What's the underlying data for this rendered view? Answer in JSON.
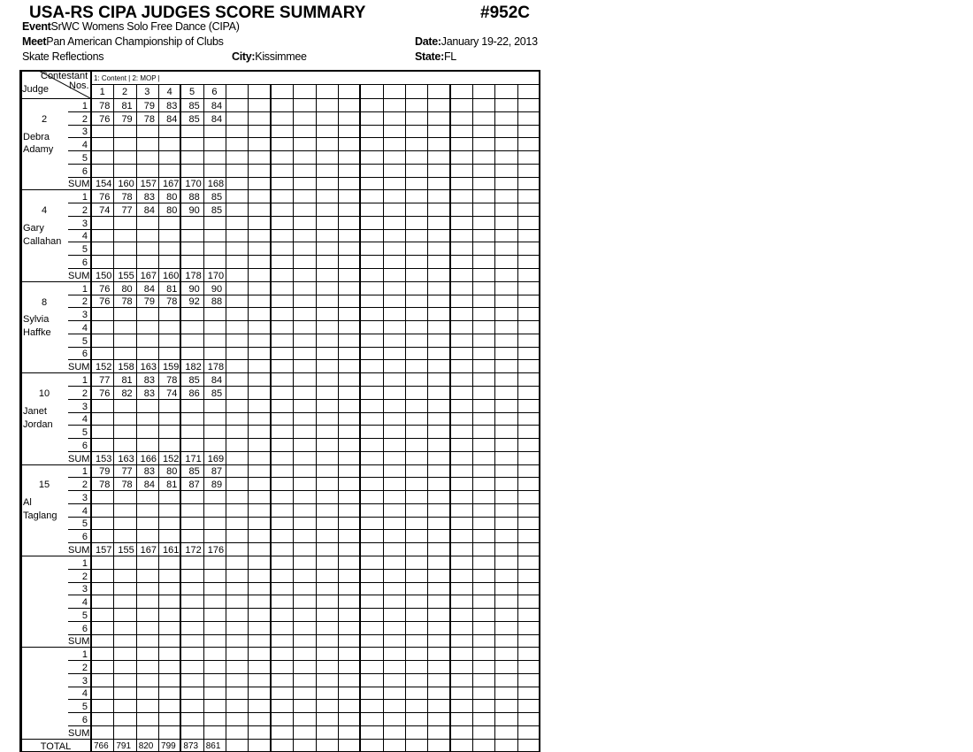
{
  "header": {
    "title": "USA-RS CIPA JUDGES SCORE SUMMARY",
    "code": "#952C",
    "event_label": "Event",
    "event": "SrWC Womens Solo Free Dance  (CIPA)",
    "meet_label": "Meet",
    "meet": "Pan American Championship of Clubs",
    "date_label": "Date:",
    "date": "January 19-22, 2013",
    "host": "Skate Reflections",
    "city_label": "City:",
    "city": "Kissimmee",
    "state_label": "State:",
    "state": "FL"
  },
  "table": {
    "contestant_label": "Contestant",
    "nos_label": "Nos.",
    "judge_label": "Judge",
    "legend": "1: Content | 2: MOP |",
    "contestant_numbers": [
      "1",
      "2",
      "3",
      "4",
      "5",
      "6"
    ],
    "row_labels": [
      "1",
      "2",
      "3",
      "4",
      "5",
      "6",
      "SUM"
    ],
    "total_label": "TOTAL",
    "judges": [
      {
        "number": "2",
        "first": "Debra",
        "last": "Adamy",
        "scores": [
          [
            "78",
            "81",
            "79",
            "83",
            "85",
            "84"
          ],
          [
            "76",
            "79",
            "78",
            "84",
            "85",
            "84"
          ]
        ],
        "sums": [
          "154",
          "160",
          "157",
          "167",
          "170",
          "168"
        ]
      },
      {
        "number": "4",
        "first": "Gary",
        "last": "Callahan",
        "scores": [
          [
            "76",
            "78",
            "83",
            "80",
            "88",
            "85"
          ],
          [
            "74",
            "77",
            "84",
            "80",
            "90",
            "85"
          ]
        ],
        "sums": [
          "150",
          "155",
          "167",
          "160",
          "178",
          "170"
        ]
      },
      {
        "number": "8",
        "first": "Sylvia",
        "last": "Haffke",
        "scores": [
          [
            "76",
            "80",
            "84",
            "81",
            "90",
            "90"
          ],
          [
            "76",
            "78",
            "79",
            "78",
            "92",
            "88"
          ]
        ],
        "sums": [
          "152",
          "158",
          "163",
          "159",
          "182",
          "178"
        ]
      },
      {
        "number": "10",
        "first": "Janet",
        "last": "Jordan",
        "scores": [
          [
            "77",
            "81",
            "83",
            "78",
            "85",
            "84"
          ],
          [
            "76",
            "82",
            "83",
            "74",
            "86",
            "85"
          ]
        ],
        "sums": [
          "153",
          "163",
          "166",
          "152",
          "171",
          "169"
        ]
      },
      {
        "number": "15",
        "first": "Al",
        "last": "Taglang",
        "scores": [
          [
            "79",
            "77",
            "83",
            "80",
            "85",
            "87"
          ],
          [
            "78",
            "78",
            "84",
            "81",
            "87",
            "89"
          ]
        ],
        "sums": [
          "157",
          "155",
          "167",
          "161",
          "172",
          "176"
        ]
      },
      {
        "number": "",
        "first": "",
        "last": "",
        "scores": [],
        "sums": []
      },
      {
        "number": "",
        "first": "",
        "last": "",
        "scores": [],
        "sums": []
      }
    ],
    "totals": [
      "766",
      "791",
      "820",
      "799",
      "873",
      "861"
    ]
  }
}
